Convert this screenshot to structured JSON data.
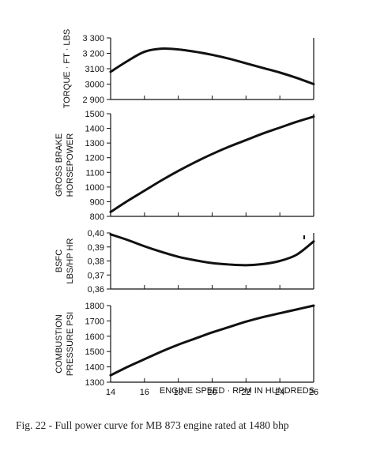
{
  "caption": "Fig. 22 - Full power curve for MB 873 engine rated at 1480 bhp",
  "chart_data": [
    {
      "type": "line",
      "ylabel": [
        "TORQUE · FT · LBS"
      ],
      "ylim": [
        2900,
        3300
      ],
      "yticks": [
        2900,
        3000,
        3100,
        3200,
        3300
      ],
      "ytick_labels": [
        "2 900",
        "3000",
        "3100",
        "3 200",
        "3 300"
      ],
      "xlim": [
        14,
        26
      ],
      "series": [
        {
          "x": [
            14,
            15,
            16,
            17,
            18,
            19,
            20,
            21,
            22,
            23,
            24,
            25,
            26
          ],
          "y": [
            3080,
            3150,
            3210,
            3230,
            3225,
            3210,
            3190,
            3165,
            3135,
            3105,
            3075,
            3040,
            3000
          ]
        }
      ]
    },
    {
      "type": "line",
      "ylabel": [
        "GROSS BRAKE",
        "HORSEPOWER"
      ],
      "ylim": [
        800,
        1500
      ],
      "yticks": [
        800,
        900,
        1000,
        1100,
        1200,
        1300,
        1400,
        1500
      ],
      "ytick_labels": [
        "800",
        "900",
        "1000",
        "1100",
        "1200",
        "1300",
        "1400",
        "1500"
      ],
      "xlim": [
        14,
        26
      ],
      "series": [
        {
          "x": [
            14,
            15,
            16,
            17,
            18,
            19,
            20,
            21,
            22,
            23,
            24,
            25,
            26
          ],
          "y": [
            830,
            905,
            975,
            1045,
            1110,
            1170,
            1225,
            1275,
            1320,
            1365,
            1405,
            1445,
            1480
          ]
        }
      ]
    },
    {
      "type": "line",
      "ylabel": [
        "BSFC",
        "LBS/HP HR"
      ],
      "ylim": [
        0.36,
        0.4
      ],
      "yticks": [
        0.36,
        0.37,
        0.38,
        0.39,
        0.4
      ],
      "ytick_labels": [
        "0,36",
        "0,37",
        "0,38",
        "0,39",
        "0,40"
      ],
      "xlim": [
        14,
        26
      ],
      "series": [
        {
          "x": [
            14,
            15,
            16,
            17,
            18,
            19,
            20,
            21,
            22,
            23,
            24,
            25,
            26
          ],
          "y": [
            0.399,
            0.395,
            0.3905,
            0.3865,
            0.383,
            0.3805,
            0.3785,
            0.3775,
            0.377,
            0.3778,
            0.38,
            0.3845,
            0.394
          ]
        }
      ]
    },
    {
      "type": "line",
      "ylabel": [
        "COMBUSTION",
        "PRESSURE  PSI"
      ],
      "ylim": [
        1300,
        1800
      ],
      "yticks": [
        1300,
        1400,
        1500,
        1600,
        1700,
        1800
      ],
      "ytick_labels": [
        "1300",
        "1400",
        "1500",
        "1600",
        "1700",
        "1800"
      ],
      "xlim": [
        14,
        26
      ],
      "xticks": [
        14,
        16,
        18,
        20,
        22,
        24,
        26
      ],
      "xtick_labels": [
        "14",
        "16",
        "18",
        "20",
        "22",
        "24",
        "26"
      ],
      "xlabel": "ENGINE SPEED · RPM IN HUNDREDS",
      "series": [
        {
          "x": [
            14,
            15,
            16,
            17,
            18,
            19,
            20,
            21,
            22,
            23,
            24,
            25,
            26
          ],
          "y": [
            1345,
            1400,
            1450,
            1500,
            1545,
            1585,
            1625,
            1660,
            1695,
            1725,
            1750,
            1775,
            1800
          ]
        }
      ]
    }
  ]
}
